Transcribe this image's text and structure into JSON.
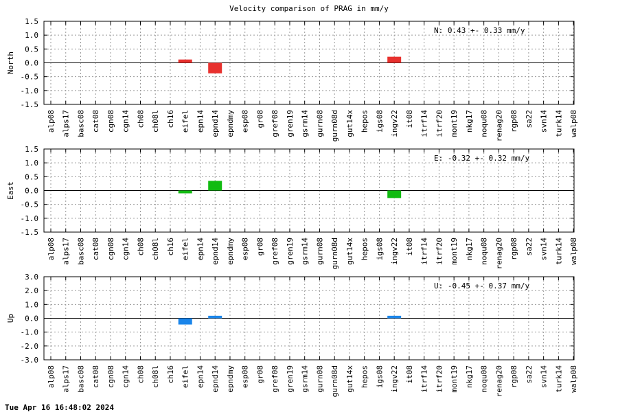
{
  "title": "Velocity comparison of PRAG in mm/y",
  "timestamp": "Tue Apr 16 16:48:02 2024",
  "chart_data": {
    "type": "bar",
    "categories": [
      "alp08",
      "alps17",
      "basc08",
      "cat08",
      "cgn08",
      "cgn14",
      "ch08",
      "ch08l",
      "ch16",
      "eifel",
      "epn14",
      "epnd14",
      "epndmy",
      "esp08",
      "gr08",
      "gref08",
      "gren19",
      "gsrm14",
      "gurn08",
      "gurn08d",
      "gut14x",
      "hepos",
      "igs08",
      "ingv22",
      "it08",
      "itrf14",
      "itrf20",
      "mont19",
      "nkg17",
      "noqu08",
      "renag20",
      "rgp08",
      "sa22",
      "svn14",
      "turk14",
      "walp08"
    ],
    "panels": [
      {
        "ylabel": "North",
        "ylim": [
          -1.5,
          1.5
        ],
        "yticks": [
          "1.5",
          "1.0",
          "0.5",
          "0.0",
          "-0.5",
          "-1.0",
          "-1.5"
        ],
        "stat": "N:   0.43 +-  0.33 mm/y",
        "color": "#e8312e",
        "values": {
          "eifel": 0.12,
          "epnd14": -0.38,
          "ingv22": 0.22
        }
      },
      {
        "ylabel": "East",
        "ylim": [
          -1.5,
          1.5
        ],
        "yticks": [
          "1.5",
          "1.0",
          "0.5",
          "0.0",
          "-0.5",
          "-1.0",
          "-1.5"
        ],
        "stat": "E:  -0.32 +-  0.32 mm/y",
        "color": "#11bb11",
        "values": {
          "eifel": -0.1,
          "epnd14": 0.35,
          "ingv22": -0.27
        }
      },
      {
        "ylabel": "Up",
        "ylim": [
          -3.0,
          3.0
        ],
        "yticks": [
          "3.0",
          "2.0",
          "1.0",
          "0.0",
          "-1.0",
          "-2.0",
          "-3.0"
        ],
        "stat": "U:  -0.45 +-  0.37 mm/y",
        "color": "#1a85ea",
        "values": {
          "eifel": -0.45,
          "epnd14": 0.18,
          "ingv22": 0.18
        }
      }
    ]
  }
}
